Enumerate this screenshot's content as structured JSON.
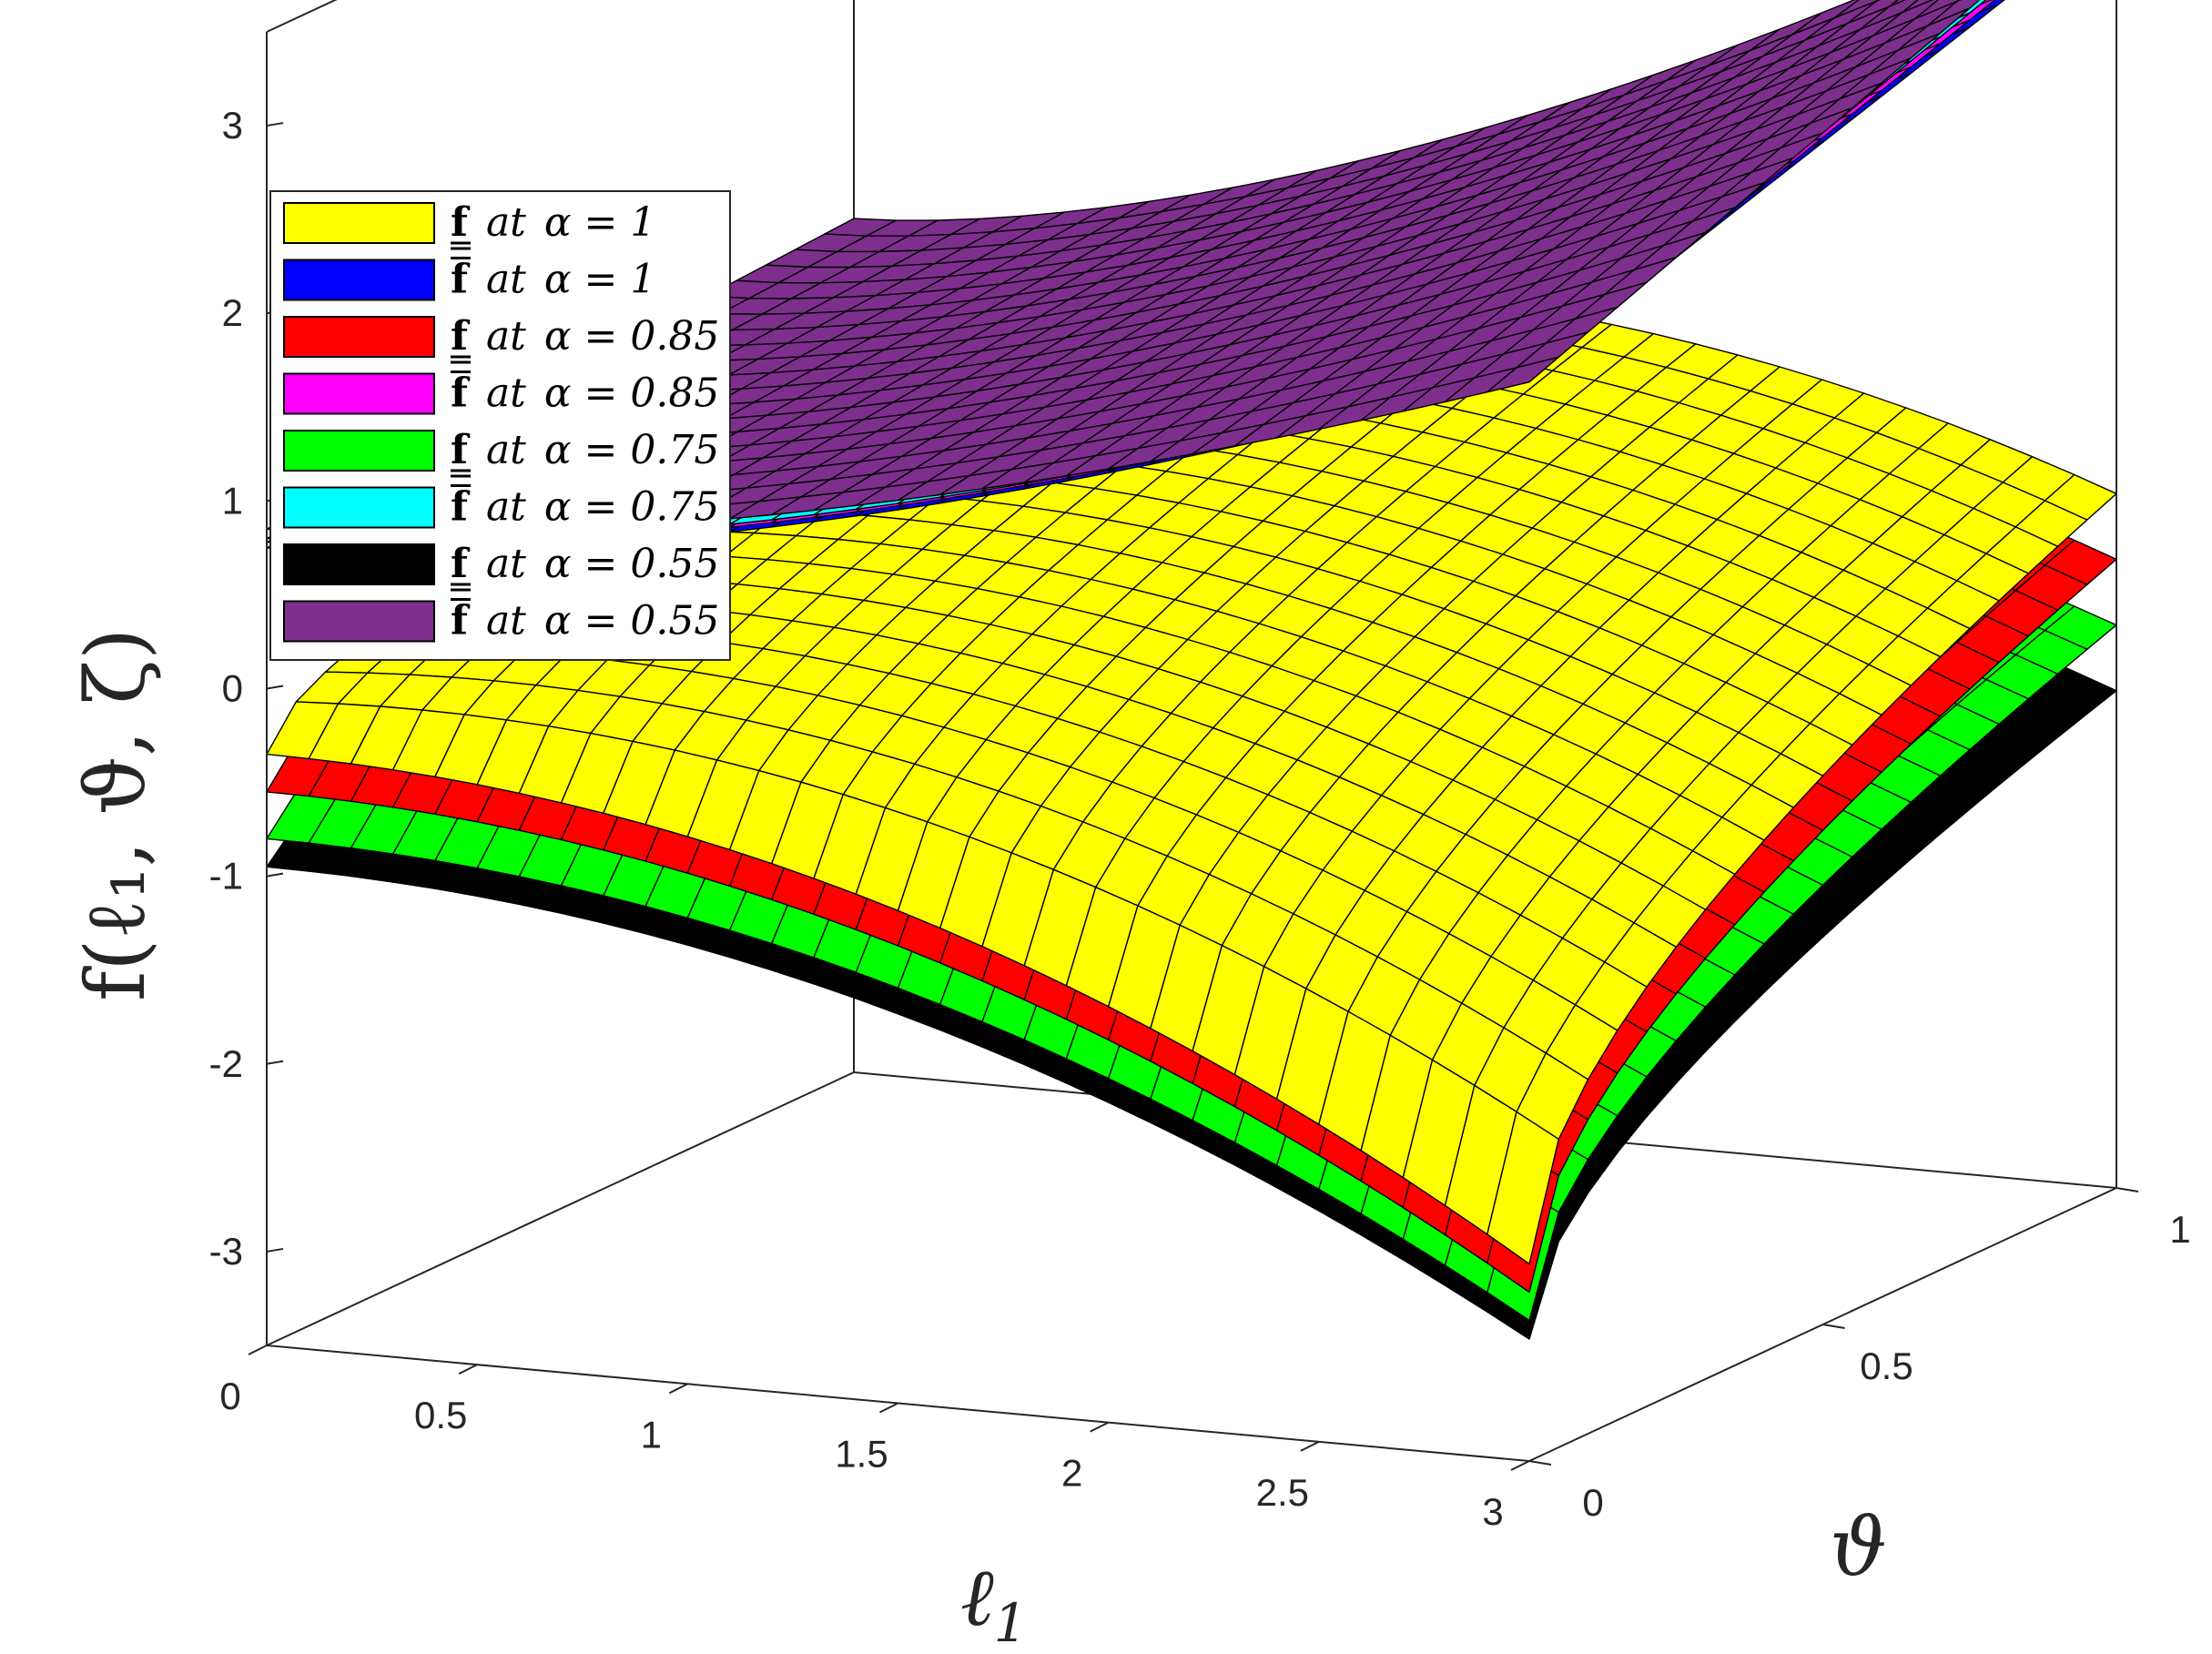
{
  "chart_data": {
    "type": "surface3d",
    "x_axis": {
      "label": "ℓ",
      "label_sub": "1",
      "range": [
        0,
        3
      ],
      "ticks": [
        "0",
        "0.5",
        "1",
        "1.5",
        "2",
        "2.5",
        "3"
      ]
    },
    "y_axis": {
      "label": "ϑ",
      "range": [
        0,
        1
      ],
      "ticks": [
        "0",
        "0.5",
        "1"
      ]
    },
    "z_axis": {
      "label": "f(ℓ₁, ϑ, ζ)",
      "range": [
        -3.5,
        3.5
      ],
      "ticks": [
        "-3",
        "-2",
        "-1",
        "0",
        "1",
        "2",
        "3"
      ]
    },
    "legend": {
      "placement": "top-left",
      "entries": [
        {
          "fn": "f",
          "bar": "under",
          "text": "at",
          "alpha": "α = 1",
          "color": "#ffff00"
        },
        {
          "fn": "f",
          "bar": "over",
          "text": "at",
          "alpha": "α = 1",
          "color": "#0000ff"
        },
        {
          "fn": "f",
          "bar": "under",
          "text": "at",
          "alpha": "α = 0.85",
          "color": "#ff0000"
        },
        {
          "fn": "f",
          "bar": "over",
          "text": "at",
          "alpha": "α = 0.85",
          "color": "#ff00ff"
        },
        {
          "fn": "f",
          "bar": "under",
          "text": "at",
          "alpha": "α = 0.75",
          "color": "#00ff00"
        },
        {
          "fn": "f",
          "bar": "over",
          "text": "at",
          "alpha": "α = 0.75",
          "color": "#00ffff"
        },
        {
          "fn": "f",
          "bar": "under",
          "text": "at",
          "alpha": "α = 0.55",
          "color": "#000000"
        },
        {
          "fn": "f",
          "bar": "over",
          "text": "at",
          "alpha": "α = 0.55",
          "color": "#7e2f8e"
        }
      ]
    },
    "surfaces_lower": [
      {
        "alpha": 0.55,
        "color": "#000000",
        "z_l0": -0.95,
        "z_l3": -2.85,
        "z_v1": 1.1
      },
      {
        "alpha": 0.75,
        "color": "#00ff00",
        "z_l0": -0.8,
        "z_l3": -2.75,
        "z_v1": 1.35
      },
      {
        "alpha": 0.85,
        "color": "#ff0000",
        "z_l0": -0.55,
        "z_l3": -2.6,
        "z_v1": 1.55
      },
      {
        "alpha": 1,
        "color": "#ffff00",
        "z_l0": -0.35,
        "z_l3": -2.45,
        "z_v1": 1.75
      }
    ],
    "surfaces_upper": [
      {
        "alpha": 1,
        "color": "#0000ff",
        "z_l0": 0.75,
        "z_l3_v0": 2.3,
        "z_l3_v1": 3.1
      },
      {
        "alpha": 0.85,
        "color": "#ff00ff",
        "z_l0": 0.78,
        "z_l3_v0": 2.3,
        "z_l3_v1": 3.15
      },
      {
        "alpha": 0.75,
        "color": "#00ffff",
        "z_l0": 0.8,
        "z_l3_v0": 2.3,
        "z_l3_v1": 3.2
      },
      {
        "alpha": 0.55,
        "color": "#7e2f8e",
        "z_l0": 0.85,
        "z_l3_v0": 2.25,
        "z_l3_v1": 3.25
      }
    ]
  }
}
